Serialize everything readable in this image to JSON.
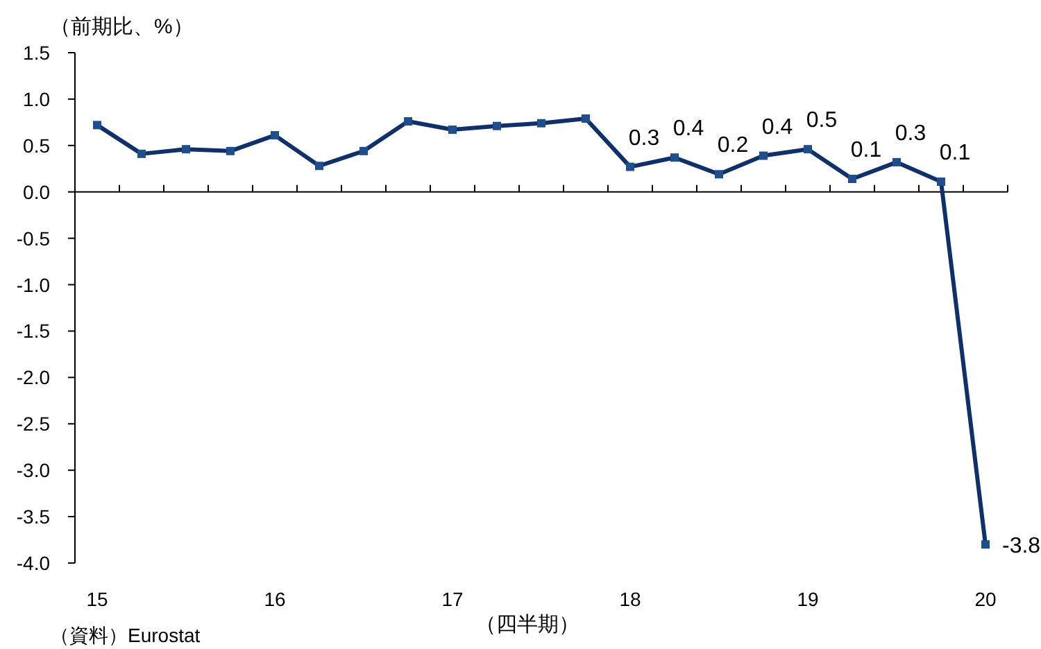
{
  "chart_data": {
    "type": "line",
    "ylabel": "（前期比、%）",
    "xlabel": "（四半期）",
    "annotations": [
      "（資料）Eurostat"
    ],
    "categories": [
      "15",
      null,
      null,
      null,
      "16",
      null,
      null,
      null,
      "17",
      null,
      null,
      null,
      "18",
      null,
      null,
      null,
      "19",
      null,
      null,
      null,
      "20"
    ],
    "series": [
      {
        "color": "#10306a",
        "values": [
          0.72,
          0.41,
          0.46,
          0.44,
          0.61,
          0.28,
          0.44,
          0.76,
          0.67,
          0.71,
          0.74,
          0.79,
          0.27,
          0.37,
          0.19,
          0.39,
          0.46,
          0.14,
          0.32,
          0.11,
          -3.8
        ],
        "value_labels": [
          null,
          null,
          null,
          null,
          null,
          null,
          null,
          null,
          null,
          null,
          null,
          null,
          "0.3",
          "0.4",
          "0.2",
          "0.4",
          "0.5",
          "0.1",
          "0.3",
          "0.1",
          "-3.8"
        ]
      }
    ],
    "ylim": [
      -4.0,
      1.5
    ],
    "yticks": [
      {
        "value": -4,
        "label": "-4.0"
      },
      {
        "value": -3.5,
        "label": "-3.5"
      },
      {
        "value": -3,
        "label": "-3.0"
      },
      {
        "value": -2.5,
        "label": "-2.5"
      },
      {
        "value": -2,
        "label": "-2.0"
      },
      {
        "value": -1.5,
        "label": "-1.5"
      },
      {
        "value": -1,
        "label": "-1.0"
      },
      {
        "value": -0.5,
        "label": "-0.5"
      },
      {
        "value": 0,
        "label": "0.0"
      },
      {
        "value": 0.5,
        "label": "0.5"
      },
      {
        "value": 1,
        "label": "1.0"
      },
      {
        "value": 1.5,
        "label": "1.5"
      }
    ],
    "marker": "square",
    "line_style": "solid"
  }
}
